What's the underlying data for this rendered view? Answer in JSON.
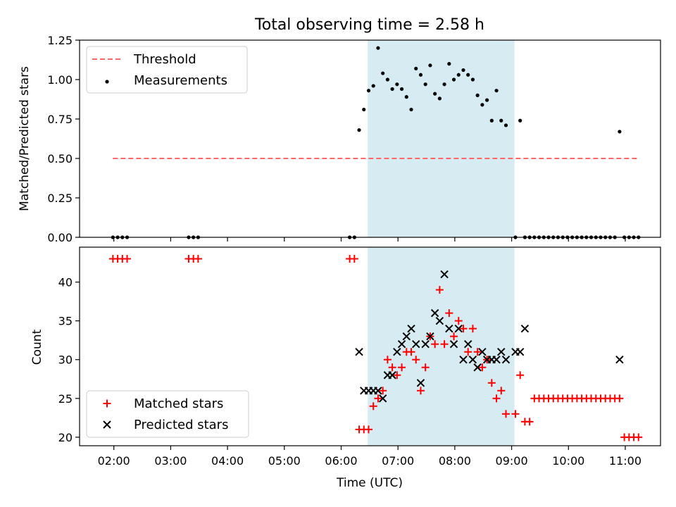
{
  "chart_data": {
    "title": "Total observing time = 2.58 h",
    "xlabel": "Time (UTC)",
    "x_ticks": [
      "02:00",
      "03:00",
      "04:00",
      "05:00",
      "06:00",
      "07:00",
      "08:00",
      "09:00",
      "10:00",
      "11:00"
    ],
    "highlight_span": {
      "start": "06:28",
      "end": "09:03",
      "color": "#add8e6"
    },
    "panels": [
      {
        "type": "scatter",
        "ylabel": "Matched/Predicted stars",
        "ylim": [
          0,
          1.25
        ],
        "y_ticks": [
          "0.00",
          "0.25",
          "0.50",
          "0.75",
          "1.00",
          "1.25"
        ],
        "legend_position": "top-left",
        "threshold": {
          "name": "Threshold",
          "value": 0.5,
          "x_range": [
            "01:59",
            "11:15"
          ],
          "color": "#ff6666"
        },
        "series": [
          {
            "name": "Measurements",
            "color": "#000000",
            "marker": "dot",
            "points": [
              [
                "01:59",
                0
              ],
              [
                "02:04",
                0
              ],
              [
                "02:09",
                0
              ],
              [
                "02:14",
                0
              ],
              [
                "03:19",
                0
              ],
              [
                "03:24",
                0
              ],
              [
                "03:29",
                0
              ],
              [
                "06:09",
                0
              ],
              [
                "06:14",
                0
              ],
              [
                "06:19",
                0.68
              ],
              [
                "06:24",
                0.81
              ],
              [
                "06:29",
                0.93
              ],
              [
                "06:34",
                0.96
              ],
              [
                "06:39",
                1.2
              ],
              [
                "06:44",
                1.04
              ],
              [
                "06:49",
                1.0
              ],
              [
                "06:54",
                0.94
              ],
              [
                "06:59",
                0.97
              ],
              [
                "07:04",
                0.94
              ],
              [
                "07:09",
                0.89
              ],
              [
                "07:14",
                0.81
              ],
              [
                "07:19",
                1.07
              ],
              [
                "07:24",
                1.03
              ],
              [
                "07:29",
                0.97
              ],
              [
                "07:34",
                1.09
              ],
              [
                "07:39",
                0.91
              ],
              [
                "07:44",
                0.88
              ],
              [
                "07:49",
                0.97
              ],
              [
                "07:54",
                1.1
              ],
              [
                "07:59",
                1.0
              ],
              [
                "08:04",
                1.03
              ],
              [
                "08:09",
                1.06
              ],
              [
                "08:14",
                1.03
              ],
              [
                "08:19",
                1.0
              ],
              [
                "08:24",
                0.9
              ],
              [
                "08:29",
                0.84
              ],
              [
                "08:34",
                0.87
              ],
              [
                "08:39",
                0.74
              ],
              [
                "08:44",
                0.93
              ],
              [
                "08:49",
                0.74
              ],
              [
                "08:54",
                0.71
              ],
              [
                "09:04",
                0
              ],
              [
                "09:09",
                0.74
              ],
              [
                "09:14",
                0
              ],
              [
                "09:19",
                0
              ],
              [
                "09:24",
                0
              ],
              [
                "09:29",
                0
              ],
              [
                "09:34",
                0
              ],
              [
                "09:39",
                0
              ],
              [
                "09:44",
                0
              ],
              [
                "09:49",
                0
              ],
              [
                "09:54",
                0
              ],
              [
                "09:59",
                0
              ],
              [
                "10:04",
                0
              ],
              [
                "10:09",
                0
              ],
              [
                "10:14",
                0
              ],
              [
                "10:19",
                0
              ],
              [
                "10:24",
                0
              ],
              [
                "10:29",
                0
              ],
              [
                "10:34",
                0
              ],
              [
                "10:39",
                0
              ],
              [
                "10:44",
                0
              ],
              [
                "10:49",
                0
              ],
              [
                "10:54",
                0.67
              ],
              [
                "10:59",
                0
              ],
              [
                "11:04",
                0
              ],
              [
                "11:09",
                0
              ],
              [
                "11:14",
                0
              ]
            ]
          }
        ]
      },
      {
        "type": "scatter",
        "ylabel": "Count",
        "ylim": [
          18.9,
          44.5
        ],
        "y_ticks": [
          "20",
          "25",
          "30",
          "35",
          "40"
        ],
        "legend_position": "bottom-left",
        "series": [
          {
            "name": "Matched stars",
            "color": "#ff0000",
            "marker": "plus",
            "points": [
              [
                "01:59",
                43
              ],
              [
                "02:04",
                43
              ],
              [
                "02:09",
                43
              ],
              [
                "02:14",
                43
              ],
              [
                "03:19",
                43
              ],
              [
                "03:24",
                43
              ],
              [
                "03:29",
                43
              ],
              [
                "06:09",
                43
              ],
              [
                "06:14",
                43
              ],
              [
                "06:19",
                21
              ],
              [
                "06:24",
                21
              ],
              [
                "06:29",
                21
              ],
              [
                "06:34",
                24
              ],
              [
                "06:39",
                25
              ],
              [
                "06:44",
                26
              ],
              [
                "06:49",
                30
              ],
              [
                "06:54",
                29
              ],
              [
                "06:59",
                28
              ],
              [
                "07:04",
                29
              ],
              [
                "07:09",
                31
              ],
              [
                "07:14",
                31
              ],
              [
                "07:19",
                30
              ],
              [
                "07:24",
                26
              ],
              [
                "07:29",
                29
              ],
              [
                "07:34",
                33
              ],
              [
                "07:39",
                32
              ],
              [
                "07:44",
                39
              ],
              [
                "07:49",
                32
              ],
              [
                "07:54",
                36
              ],
              [
                "07:59",
                33
              ],
              [
                "08:04",
                35
              ],
              [
                "08:09",
                34
              ],
              [
                "08:14",
                31
              ],
              [
                "08:19",
                34
              ],
              [
                "08:24",
                31
              ],
              [
                "08:29",
                29
              ],
              [
                "08:34",
                30
              ],
              [
                "08:39",
                27
              ],
              [
                "08:44",
                25
              ],
              [
                "08:49",
                26
              ],
              [
                "08:54",
                23
              ],
              [
                "09:04",
                23
              ],
              [
                "09:09",
                28
              ],
              [
                "09:14",
                22
              ],
              [
                "09:19",
                22
              ],
              [
                "09:24",
                25
              ],
              [
                "09:29",
                25
              ],
              [
                "09:34",
                25
              ],
              [
                "09:39",
                25
              ],
              [
                "09:44",
                25
              ],
              [
                "09:49",
                25
              ],
              [
                "09:54",
                25
              ],
              [
                "09:59",
                25
              ],
              [
                "10:04",
                25
              ],
              [
                "10:09",
                25
              ],
              [
                "10:14",
                25
              ],
              [
                "10:19",
                25
              ],
              [
                "10:24",
                25
              ],
              [
                "10:29",
                25
              ],
              [
                "10:34",
                25
              ],
              [
                "10:39",
                25
              ],
              [
                "10:44",
                25
              ],
              [
                "10:49",
                25
              ],
              [
                "10:54",
                25
              ],
              [
                "10:59",
                20
              ],
              [
                "11:04",
                20
              ],
              [
                "11:09",
                20
              ],
              [
                "11:14",
                20
              ]
            ]
          },
          {
            "name": "Predicted stars",
            "color": "#000000",
            "marker": "x",
            "points": [
              [
                "06:19",
                31
              ],
              [
                "06:24",
                26
              ],
              [
                "06:29",
                26
              ],
              [
                "06:34",
                26
              ],
              [
                "06:39",
                26
              ],
              [
                "06:44",
                25
              ],
              [
                "06:49",
                28
              ],
              [
                "06:54",
                28
              ],
              [
                "06:59",
                31
              ],
              [
                "07:04",
                32
              ],
              [
                "07:09",
                33
              ],
              [
                "07:14",
                34
              ],
              [
                "07:19",
                32
              ],
              [
                "07:24",
                27
              ],
              [
                "07:29",
                32
              ],
              [
                "07:34",
                33
              ],
              [
                "07:39",
                36
              ],
              [
                "07:44",
                35
              ],
              [
                "07:49",
                41
              ],
              [
                "07:54",
                34
              ],
              [
                "07:59",
                32
              ],
              [
                "08:04",
                34
              ],
              [
                "08:09",
                30
              ],
              [
                "08:14",
                32
              ],
              [
                "08:19",
                30
              ],
              [
                "08:24",
                29
              ],
              [
                "08:29",
                31
              ],
              [
                "08:34",
                30
              ],
              [
                "08:39",
                30
              ],
              [
                "08:44",
                30
              ],
              [
                "08:49",
                31
              ],
              [
                "08:54",
                30
              ],
              [
                "09:04",
                31
              ],
              [
                "09:09",
                31
              ],
              [
                "09:14",
                34
              ],
              [
                "10:54",
                30
              ]
            ]
          }
        ]
      }
    ]
  }
}
